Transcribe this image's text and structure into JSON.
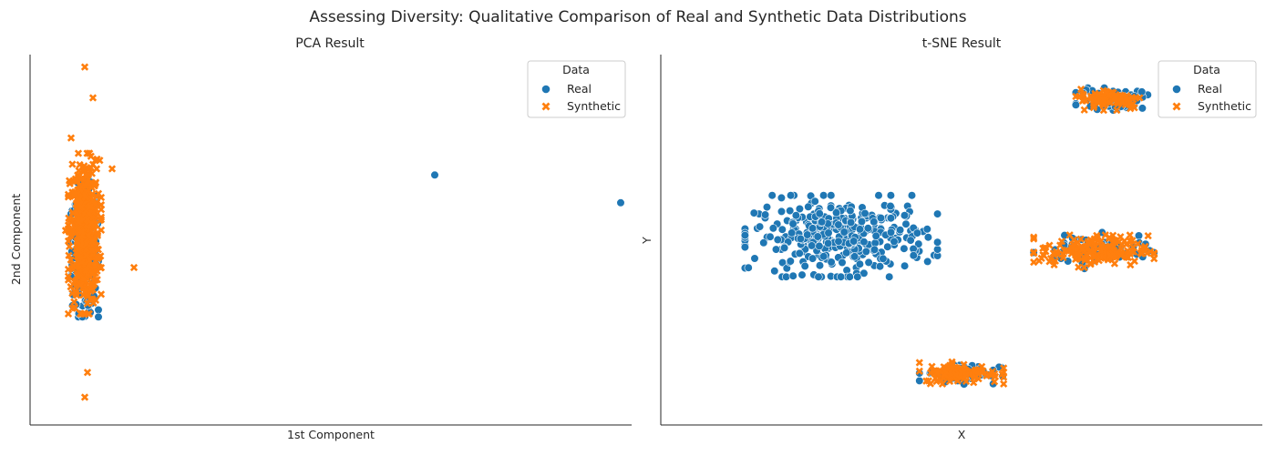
{
  "figure": {
    "title": "Assessing Diversity: Qualitative Comparison of Real and Synthetic Data Distributions"
  },
  "colors": {
    "real": "#1f77b4",
    "synthetic": "#ff7f0e",
    "edge": "#ffffff"
  },
  "legend_entries": [
    {
      "label": "Real",
      "marker": "circle"
    },
    {
      "label": "Synthetic",
      "marker": "x"
    }
  ],
  "chart_data": [
    {
      "type": "scatter",
      "title": "PCA Result",
      "xlabel": "1st Component",
      "ylabel": "2nd Component",
      "xlim": [
        -1,
        10
      ],
      "ylim": [
        -6,
        6
      ],
      "ticks": "hidden",
      "grid": false,
      "legend": {
        "title": "Data",
        "placement": "top-right"
      },
      "series": [
        {
          "name": "Real",
          "marker": "circle",
          "clusters": [
            {
              "center": [
                0.0,
                -0.3
              ],
              "spread": [
                0.25,
                2.2
              ],
              "count": 420
            }
          ],
          "points": [
            [
              6.4,
              2.1
            ],
            [
              9.8,
              1.2
            ]
          ]
        },
        {
          "name": "Synthetic",
          "marker": "x",
          "clusters": [
            {
              "center": [
                0.0,
                0.2
              ],
              "spread": [
                0.3,
                2.6
              ],
              "count": 520
            }
          ],
          "points": [
            [
              0.0,
              5.6
            ],
            [
              0.15,
              4.6
            ],
            [
              -0.25,
              3.3
            ],
            [
              0.5,
              2.3
            ],
            [
              -0.35,
              0.3
            ],
            [
              0.9,
              -0.9
            ],
            [
              0.0,
              -5.1
            ],
            [
              0.05,
              -4.3
            ]
          ]
        }
      ]
    },
    {
      "type": "scatter",
      "title": "t-SNE Result",
      "xlabel": "X",
      "ylabel": "Y",
      "xlim": [
        -50,
        50
      ],
      "ylim": [
        -50,
        50
      ],
      "ticks": "hidden",
      "grid": false,
      "legend": {
        "title": "Data",
        "placement": "top-right"
      },
      "series": [
        {
          "name": "Real",
          "marker": "circle",
          "clusters": [
            {
              "center": [
                -20,
                1
              ],
              "spread": [
                16,
                11
              ],
              "count": 360
            },
            {
              "center": [
                22,
                -3
              ],
              "spread": [
                10,
                5
              ],
              "count": 70
            },
            {
              "center": [
                25,
                38
              ],
              "spread": [
                6,
                3
              ],
              "count": 70
            },
            {
              "center": [
                0,
                -36
              ],
              "spread": [
                7,
                3
              ],
              "count": 60
            }
          ],
          "points": []
        },
        {
          "name": "Synthetic",
          "marker": "x",
          "clusters": [
            {
              "center": [
                22,
                -3
              ],
              "spread": [
                10,
                4.5
              ],
              "count": 180
            },
            {
              "center": [
                25,
                38
              ],
              "spread": [
                6,
                3
              ],
              "count": 90
            },
            {
              "center": [
                0,
                -36
              ],
              "spread": [
                7,
                3
              ],
              "count": 110
            }
          ],
          "points": []
        }
      ]
    }
  ]
}
